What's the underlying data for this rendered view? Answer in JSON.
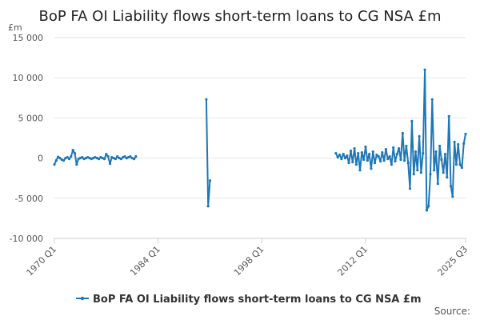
{
  "chart_data": {
    "type": "line",
    "title": "BoP FA OI Liability flows short-term loans to CG NSA £m",
    "unit_label": "£m",
    "xlabel": "",
    "ylabel": "",
    "ylim": [
      -10000,
      15000
    ],
    "yticks": [
      "15 000",
      "10 000",
      "5 000",
      "0",
      "-5 000",
      "-10 000"
    ],
    "ytick_values": [
      15000,
      10000,
      5000,
      0,
      -5000,
      -10000
    ],
    "xticks": [
      "1970 Q1",
      "1984 Q1",
      "1998 Q1",
      "2012 Q1",
      "2025 Q3"
    ],
    "xtick_values": [
      1970.0,
      1984.0,
      1998.0,
      2012.0,
      2025.5
    ],
    "xlim": [
      1970.0,
      2025.5
    ],
    "grid": "horizontal",
    "legend_position": "bottom",
    "color": "#1f77b4",
    "series": [
      {
        "name": "BoP FA OI Liability flows short-term loans to CG NSA £m",
        "segments": [
          {
            "x": [
              1970.0,
              1970.25,
              1970.5,
              1970.75,
              1971.0,
              1971.25,
              1971.5,
              1971.75,
              1972.0,
              1972.25,
              1972.5,
              1972.75,
              1973.0,
              1973.25,
              1973.5,
              1973.75,
              1974.0,
              1974.25,
              1974.5,
              1974.75,
              1975.0,
              1975.25,
              1975.5,
              1975.75,
              1976.0,
              1976.25,
              1976.5,
              1976.75,
              1977.0,
              1977.25,
              1977.5,
              1977.75,
              1978.0,
              1978.25,
              1978.5,
              1978.75,
              1979.0,
              1979.25,
              1979.5,
              1979.75
            ],
            "y": [
              -800,
              -300,
              150,
              0,
              -200,
              -300,
              0,
              100,
              -100,
              200,
              1000,
              600,
              -800,
              -100,
              0,
              100,
              -100,
              0,
              100,
              0,
              -100,
              0,
              100,
              0,
              -100,
              100,
              0,
              -100,
              500,
              200,
              -700,
              100,
              0,
              -100,
              200,
              0,
              -100,
              100,
              200,
              0
            ]
          },
          {
            "x": [
              1979.75,
              1980.0,
              1980.25,
              1980.5,
              1980.75,
              1981.0
            ],
            "y": [
              0,
              100,
              200,
              0,
              -100,
              200
            ]
          },
          {
            "x": [
              1990.5,
              1990.75,
              1991.0
            ],
            "y": [
              7300,
              -6000,
              -2800
            ]
          },
          {
            "x": [
              2008.0,
              2008.25,
              2008.5,
              2008.75,
              2009.0,
              2009.25,
              2009.5,
              2009.75,
              2010.0,
              2010.25,
              2010.5,
              2010.75,
              2011.0,
              2011.25,
              2011.5,
              2011.75,
              2012.0,
              2012.25,
              2012.5,
              2012.75,
              2013.0,
              2013.25,
              2013.5,
              2013.75,
              2014.0,
              2014.25,
              2014.5,
              2014.75,
              2015.0,
              2015.25,
              2015.5,
              2015.75,
              2016.0,
              2016.25,
              2016.5,
              2016.75,
              2017.0,
              2017.25,
              2017.5,
              2017.75,
              2018.0,
              2018.25,
              2018.5,
              2018.75,
              2019.0,
              2019.25,
              2019.5,
              2019.75,
              2020.0,
              2020.25,
              2020.5,
              2020.75,
              2021.0,
              2021.25,
              2021.5,
              2021.75,
              2022.0,
              2022.25,
              2022.5,
              2022.75,
              2023.0,
              2023.25,
              2023.5,
              2023.75,
              2024.0,
              2024.25,
              2024.5,
              2024.75,
              2025.0,
              2025.25,
              2025.5
            ],
            "y": [
              600,
              100,
              400,
              -100,
              500,
              0,
              300,
              -600,
              900,
              -500,
              1200,
              -800,
              600,
              -1500,
              700,
              -200,
              1400,
              -300,
              500,
              -1300,
              800,
              -600,
              400,
              200,
              -400,
              700,
              -300,
              1100,
              -100,
              200,
              -800,
              1300,
              -400,
              500,
              1200,
              -200,
              3100,
              -300,
              1500,
              -600,
              -3800,
              4600,
              -2000,
              800,
              -1500,
              2700,
              -1800,
              600,
              11000,
              -6500,
              -6000,
              -2000,
              7300,
              -1500,
              800,
              -3200,
              1500,
              -200,
              -1800,
              500,
              -2400,
              5200,
              -3500,
              -4800,
              2000,
              -800,
              1700,
              -800,
              -1200,
              1800,
              3000
            ]
          }
        ]
      }
    ],
    "legend_label": "BoP FA OI Liability flows short-term loans to CG NSA £m",
    "source_label": "Source:"
  }
}
